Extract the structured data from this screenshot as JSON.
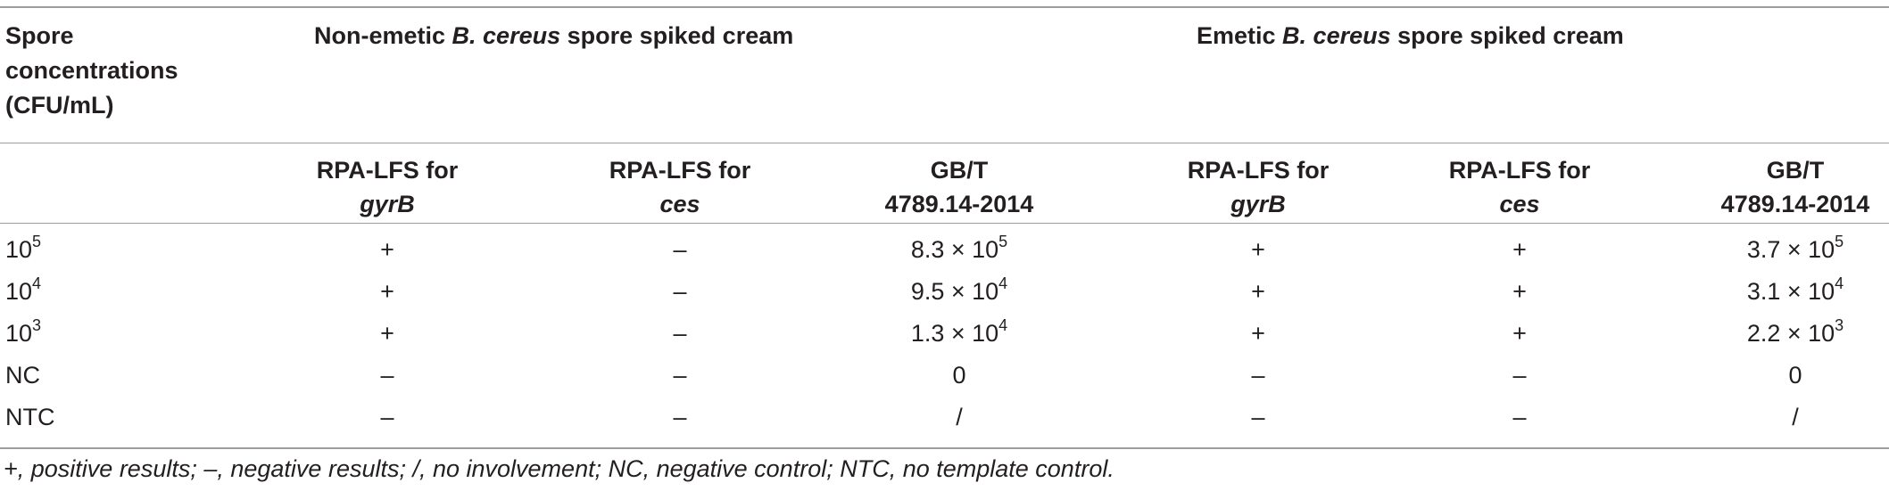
{
  "header": {
    "row_label": [
      "Spore",
      "concentrations",
      "(CFU/mL)"
    ],
    "group_nonemetic": {
      "pre": "Non-emetic ",
      "italic": "B. cereus",
      "post": " spore spiked cream"
    },
    "group_emetic": {
      "pre": "Emetic ",
      "italic": "B. cereus",
      "post": " spore spiked cream"
    },
    "columns": [
      {
        "line1": "RPA-LFS for",
        "line2": "gyrB",
        "line2_italic": true
      },
      {
        "line1": "RPA-LFS for",
        "line2": "ces",
        "line2_italic": true
      },
      {
        "line1": "GB/T",
        "line2": "4789.14-2014",
        "line2_italic": false
      },
      {
        "line1": "RPA-LFS for",
        "line2": "gyrB",
        "line2_italic": true
      },
      {
        "line1": "RPA-LFS for",
        "line2": "ces",
        "line2_italic": true
      },
      {
        "line1": "GB/T",
        "line2": "4789.14-2014",
        "line2_italic": false
      }
    ]
  },
  "rows": [
    {
      "label_base": "10",
      "label_exp": "5",
      "cells": [
        {
          "t": "+"
        },
        {
          "t": "–"
        },
        {
          "base": "8.3 × 10",
          "exp": "5"
        },
        {
          "t": "+"
        },
        {
          "t": "+"
        },
        {
          "base": "3.7 × 10",
          "exp": "5"
        }
      ]
    },
    {
      "label_base": "10",
      "label_exp": "4",
      "cells": [
        {
          "t": "+"
        },
        {
          "t": "–"
        },
        {
          "base": "9.5 × 10",
          "exp": "4"
        },
        {
          "t": "+"
        },
        {
          "t": "+"
        },
        {
          "base": "3.1 × 10",
          "exp": "4"
        }
      ]
    },
    {
      "label_base": "10",
      "label_exp": "3",
      "cells": [
        {
          "t": "+"
        },
        {
          "t": "–"
        },
        {
          "base": "1.3 × 10",
          "exp": "4"
        },
        {
          "t": "+"
        },
        {
          "t": "+"
        },
        {
          "base": "2.2 × 10",
          "exp": "3"
        }
      ]
    },
    {
      "label_base": "NC",
      "label_exp": "",
      "cells": [
        {
          "t": "–"
        },
        {
          "t": "–"
        },
        {
          "t": "0"
        },
        {
          "t": "–"
        },
        {
          "t": "–"
        },
        {
          "t": "0"
        }
      ]
    },
    {
      "label_base": "NTC",
      "label_exp": "",
      "cells": [
        {
          "t": "–"
        },
        {
          "t": "–"
        },
        {
          "t": "/"
        },
        {
          "t": "–"
        },
        {
          "t": "–"
        },
        {
          "t": "/"
        }
      ]
    }
  ],
  "footnote": "+, positive results; –, negative results; /, no involvement; NC, negative control; NTC, no template control."
}
